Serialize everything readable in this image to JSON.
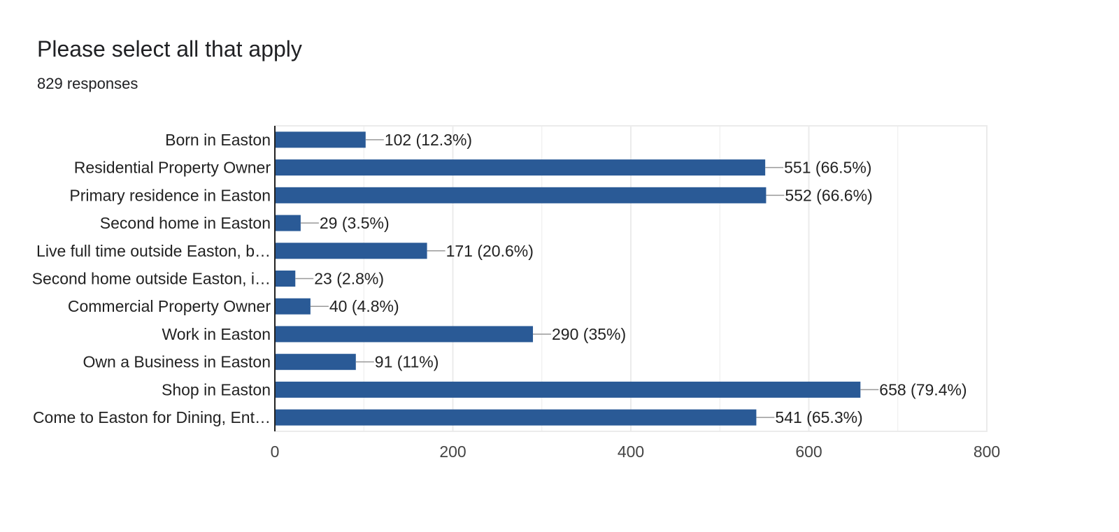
{
  "header": {
    "title": "Please select all that apply",
    "subtitle": "829 responses"
  },
  "colors": {
    "bar": "#2a5a96",
    "grid": "#ebebeb",
    "axis": "#222222",
    "leader": "#999999"
  },
  "chart_data": {
    "type": "bar",
    "orientation": "horizontal",
    "categories": [
      "Born in Easton",
      "Residential Property Owner",
      "Primary residence in Easton",
      "Second home in Easton",
      "Live full time outside Easton, b…",
      "Second home outside Easton, i…",
      "Commercial Property Owner",
      "Work in Easton",
      "Own a Business in Easton",
      "Shop in Easton",
      "Come to Easton for Dining, Ent…"
    ],
    "values": [
      102,
      551,
      552,
      29,
      171,
      23,
      40,
      290,
      91,
      658,
      541
    ],
    "value_labels": [
      "102 (12.3%)",
      "551 (66.5%)",
      "552 (66.6%)",
      "29 (3.5%)",
      "171 (20.6%)",
      "23 (2.8%)",
      "40 (4.8%)",
      "290 (35%)",
      "91 (11%)",
      "658 (79.4%)",
      "541 (65.3%)"
    ],
    "xlim": [
      0,
      800
    ],
    "xticks": [
      0,
      200,
      400,
      600,
      800
    ],
    "grid": true,
    "legend": "none"
  }
}
